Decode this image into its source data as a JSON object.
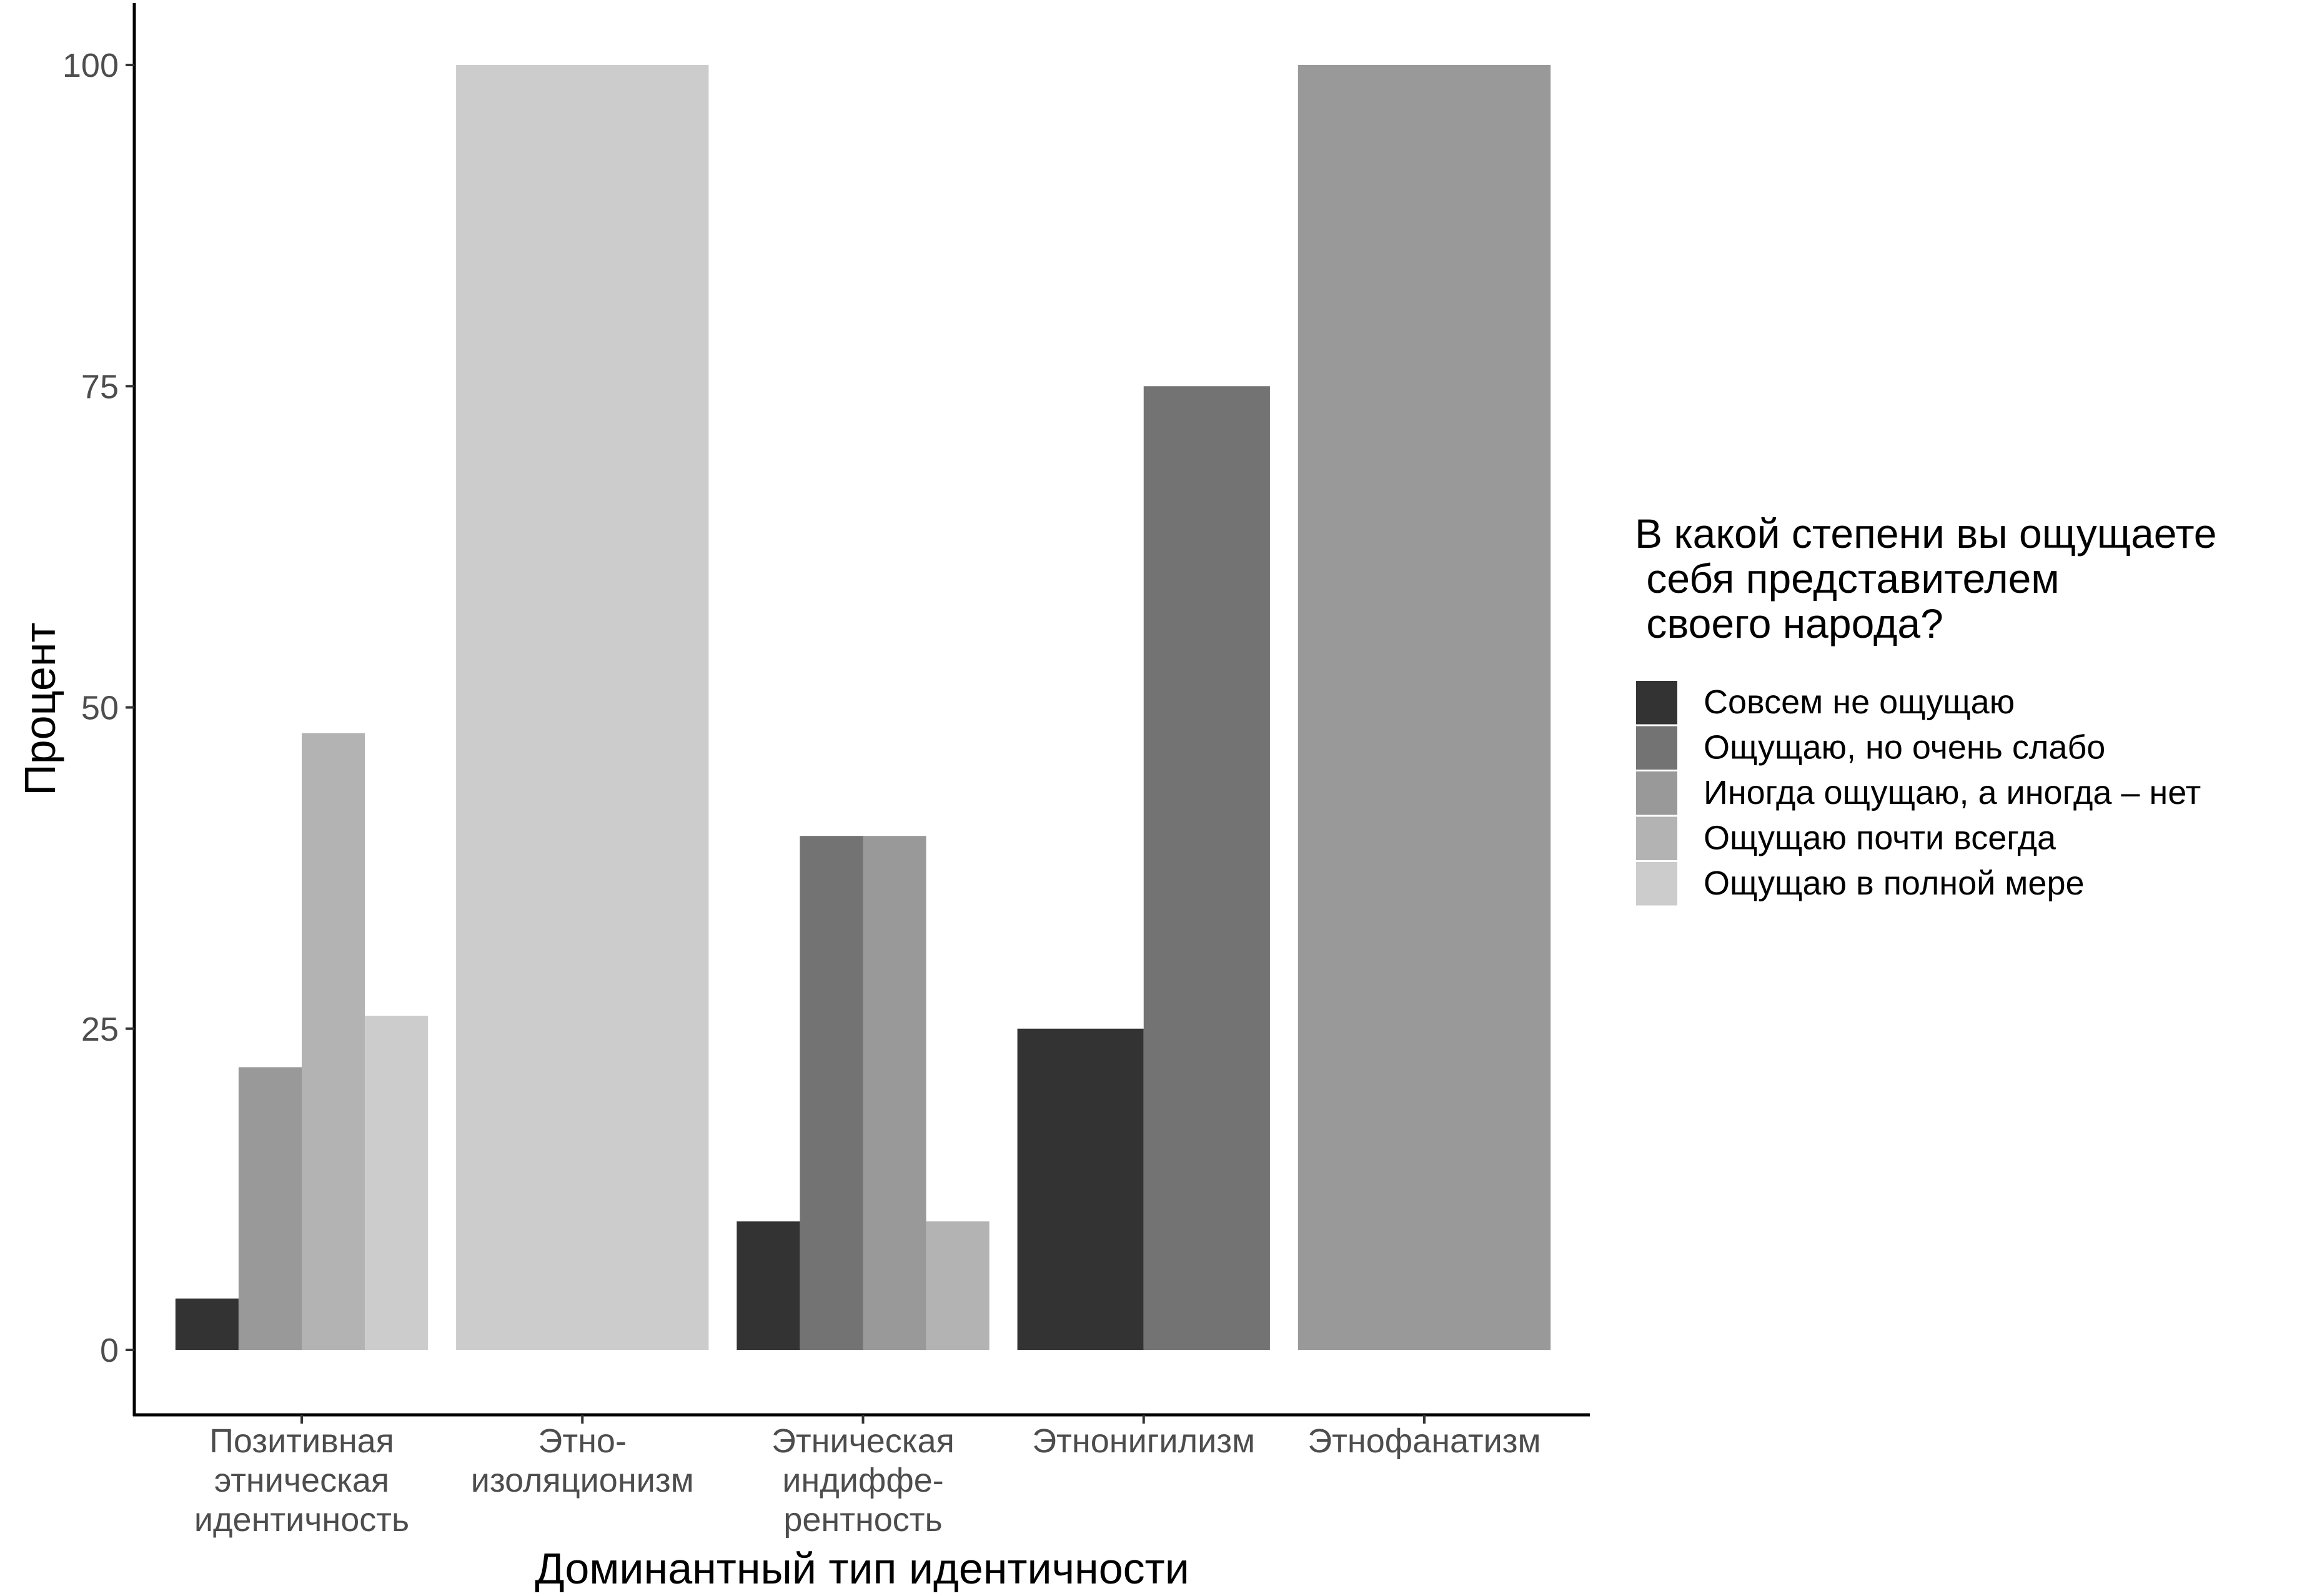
{
  "chart_data": {
    "type": "bar",
    "title": "",
    "xlabel": "Доминантный тип идентичности",
    "ylabel": "Процент",
    "ylim": [
      0,
      100
    ],
    "yticks": [
      0,
      25,
      50,
      75,
      100
    ],
    "grid": false,
    "legend_position": "right",
    "legend_title_lines": [
      "В какой степени вы ощущаете",
      " себя представителем",
      " своего народа?"
    ],
    "categories": [
      {
        "name": "Позитивная этническая идентичность",
        "lines": [
          "Позитивная",
          "этническая",
          "идентичность"
        ]
      },
      {
        "name": "Этно-изоляционизм",
        "lines": [
          "Этно-",
          "изоляционизм"
        ]
      },
      {
        "name": "Этническая индиффе-рентность",
        "lines": [
          "Этническая",
          "индиффе-",
          "рентность"
        ]
      },
      {
        "name": "Этнонигилизм",
        "lines": [
          "Этнонигилизм"
        ]
      },
      {
        "name": "Этнофанатизм",
        "lines": [
          "Этнофанатизм"
        ]
      }
    ],
    "series": [
      {
        "name": "Совсем не ощущаю",
        "color": "#333333",
        "values": [
          4,
          null,
          10,
          25,
          null
        ]
      },
      {
        "name": "Ощущаю, но очень слабо",
        "color": "#737373",
        "values": [
          null,
          null,
          40,
          75,
          null
        ]
      },
      {
        "name": "Иногда ощущаю, а иногда – нет",
        "color": "#999999",
        "values": [
          22,
          null,
          40,
          null,
          100
        ]
      },
      {
        "name": "Ощущаю почти всегда",
        "color": "#b3b3b3",
        "values": [
          48,
          null,
          10,
          null,
          null
        ]
      },
      {
        "name": "Ощущаю в полной мере",
        "color": "#cccccc",
        "values": [
          26,
          100,
          null,
          null,
          null
        ]
      }
    ]
  }
}
